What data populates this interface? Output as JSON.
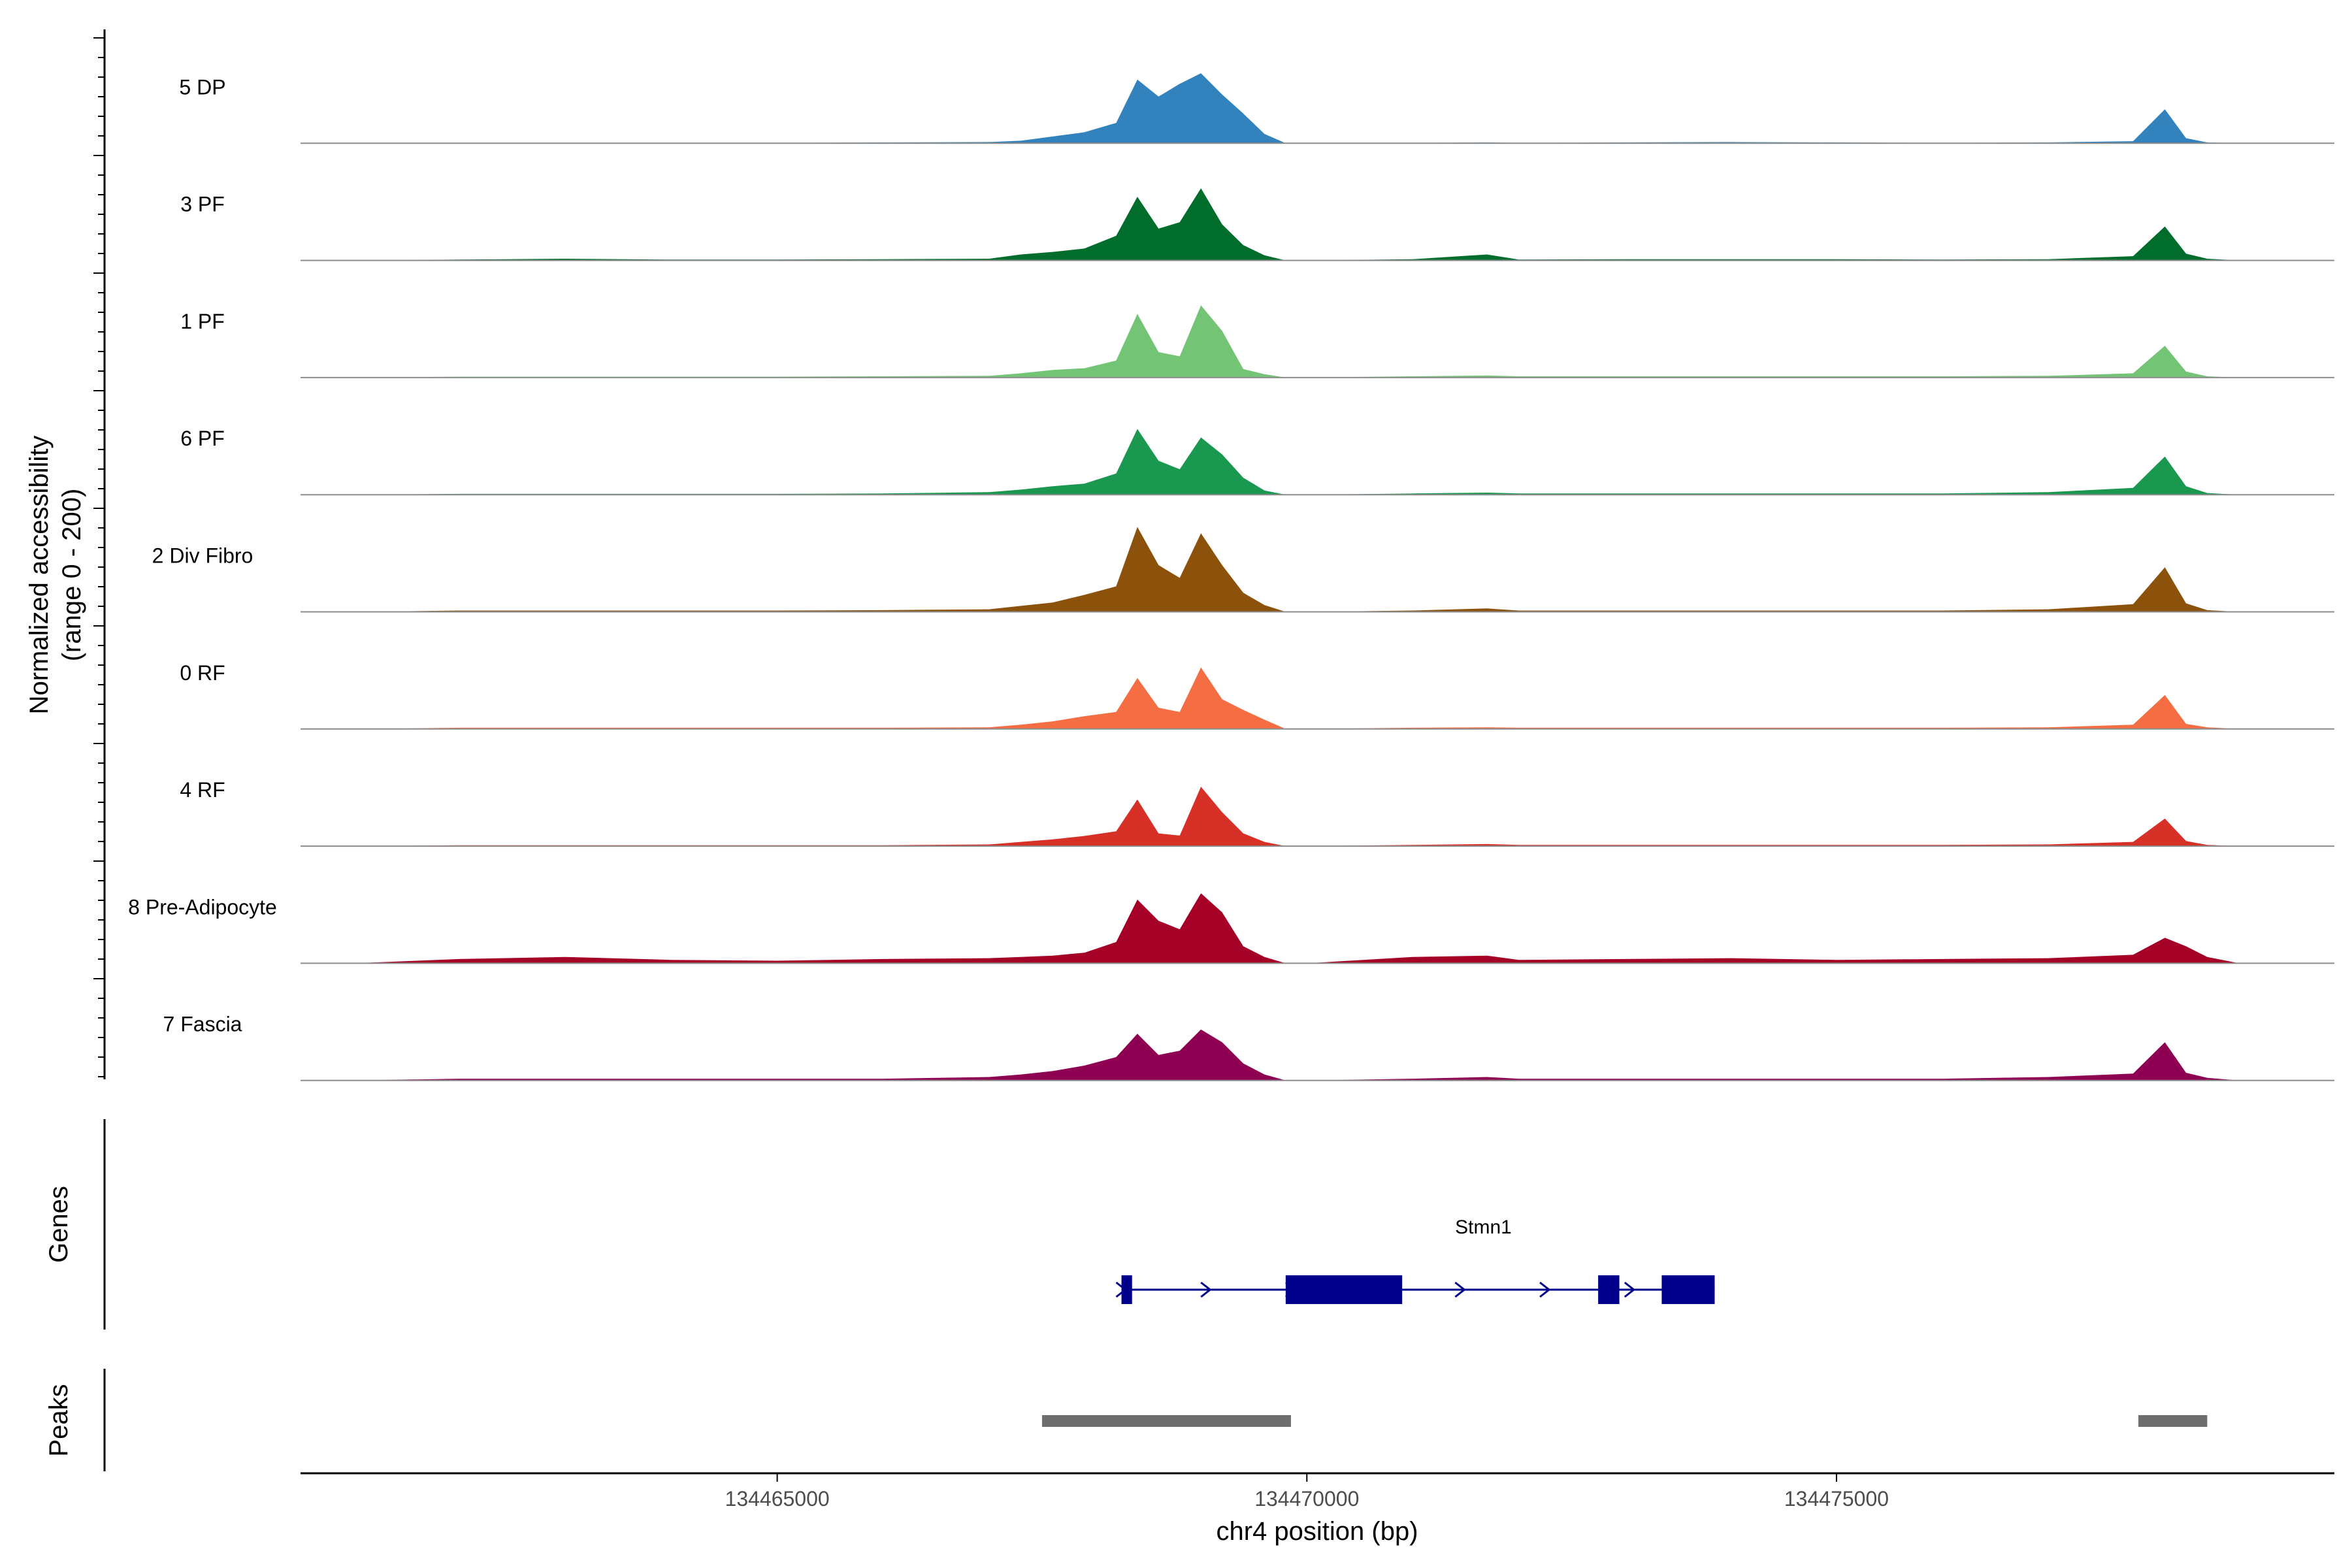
{
  "chart_data": {
    "type": "area",
    "title": "",
    "xlabel": "chr4 position (bp)",
    "ylabel": "Normalized accessibility\n(range 0 - 200)",
    "ylabel_line1": "Normalized accessibility",
    "ylabel_line2": "(range 0 - 200)",
    "ylim": [
      0,
      200
    ],
    "xlim": [
      134460500,
      134479700
    ],
    "xticks": [
      134465000,
      134470000,
      134475000
    ],
    "xtick_labels": [
      "134465000",
      "134470000",
      "134475000"
    ],
    "grid": false,
    "x": [
      134461000,
      134462000,
      134463000,
      134464000,
      134465000,
      134466000,
      134467000,
      134467300,
      134467600,
      134467900,
      134468200,
      134468400,
      134468600,
      134468800,
      134469000,
      134469200,
      134469400,
      134469600,
      134469800,
      134470000,
      134471000,
      134471700,
      134472000,
      134473000,
      134474000,
      134475000,
      134476000,
      134477000,
      134477800,
      134478100,
      134478300,
      134478500,
      134478800
    ],
    "series": [
      {
        "name": "5 DP",
        "color": "#3182bd",
        "values": [
          0,
          1,
          1,
          1,
          1,
          2,
          3,
          6,
          16,
          26,
          48,
          150,
          110,
          140,
          165,
          115,
          70,
          22,
          0,
          0,
          1,
          2,
          1,
          2,
          3,
          2,
          1,
          2,
          5,
          80,
          12,
          2,
          0
        ]
      },
      {
        "name": "3 PF",
        "color": "#006d2c",
        "values": [
          0,
          2,
          4,
          2,
          2,
          3,
          4,
          14,
          20,
          28,
          58,
          150,
          75,
          90,
          170,
          85,
          36,
          12,
          0,
          0,
          3,
          14,
          2,
          3,
          3,
          3,
          2,
          3,
          10,
          80,
          16,
          4,
          0
        ]
      },
      {
        "name": "1 PF",
        "color": "#74c476",
        "values": [
          0,
          2,
          2,
          2,
          2,
          3,
          4,
          10,
          18,
          22,
          40,
          150,
          60,
          50,
          170,
          110,
          20,
          8,
          0,
          0,
          3,
          5,
          3,
          3,
          3,
          3,
          3,
          4,
          10,
          75,
          14,
          3,
          0
        ]
      },
      {
        "name": "6 PF",
        "color": "#1a9850",
        "values": [
          0,
          2,
          2,
          2,
          2,
          3,
          6,
          12,
          20,
          26,
          50,
          155,
          80,
          60,
          135,
          95,
          40,
          10,
          0,
          0,
          3,
          5,
          3,
          3,
          3,
          3,
          3,
          6,
          16,
          90,
          20,
          4,
          0
        ]
      },
      {
        "name": "2 Div Fibro",
        "color": "#8c510a",
        "values": [
          0,
          3,
          3,
          3,
          3,
          4,
          6,
          14,
          22,
          40,
          60,
          200,
          110,
          80,
          185,
          110,
          45,
          16,
          0,
          0,
          3,
          8,
          3,
          3,
          3,
          3,
          3,
          6,
          18,
          105,
          20,
          4,
          0
        ]
      },
      {
        "name": "0 RF",
        "color": "#f46d43",
        "values": [
          0,
          3,
          3,
          3,
          3,
          3,
          4,
          10,
          18,
          30,
          40,
          120,
          50,
          40,
          145,
          70,
          45,
          22,
          0,
          0,
          3,
          4,
          3,
          3,
          3,
          3,
          3,
          4,
          10,
          80,
          12,
          4,
          0
        ]
      },
      {
        "name": "4 RF",
        "color": "#d73027",
        "values": [
          0,
          2,
          2,
          2,
          2,
          2,
          4,
          10,
          16,
          24,
          35,
          110,
          30,
          25,
          140,
          80,
          30,
          10,
          0,
          0,
          3,
          5,
          3,
          3,
          3,
          3,
          3,
          4,
          10,
          65,
          12,
          3,
          0
        ]
      },
      {
        "name": "8 Pre-Adipocyte",
        "color": "#a50026",
        "values": [
          0,
          10,
          15,
          8,
          6,
          10,
          12,
          15,
          18,
          25,
          50,
          150,
          100,
          80,
          165,
          120,
          40,
          15,
          0,
          0,
          15,
          18,
          8,
          10,
          12,
          8,
          10,
          12,
          20,
          60,
          40,
          15,
          0
        ]
      },
      {
        "name": "7 Fascia",
        "color": "#8e0152",
        "values": [
          0,
          4,
          4,
          4,
          4,
          4,
          8,
          14,
          22,
          35,
          55,
          110,
          60,
          70,
          120,
          90,
          40,
          14,
          0,
          0,
          4,
          8,
          4,
          4,
          4,
          4,
          4,
          8,
          16,
          90,
          18,
          6,
          0
        ]
      }
    ],
    "genes": {
      "label": "Genes",
      "gene_name": "Stmn1",
      "gene_start": 134468250,
      "gene_end": 134473850,
      "strand": "+",
      "exons": [
        [
          134468250,
          134468350
        ],
        [
          134469800,
          134470900
        ],
        [
          134472750,
          134472950
        ],
        [
          134473350,
          134473850
        ]
      ],
      "color": "#00008b"
    },
    "peaks": {
      "label": "Peaks",
      "color": "#6e6e6e",
      "ranges": [
        [
          134467500,
          134469850
        ],
        [
          134477850,
          134478500
        ]
      ]
    }
  }
}
